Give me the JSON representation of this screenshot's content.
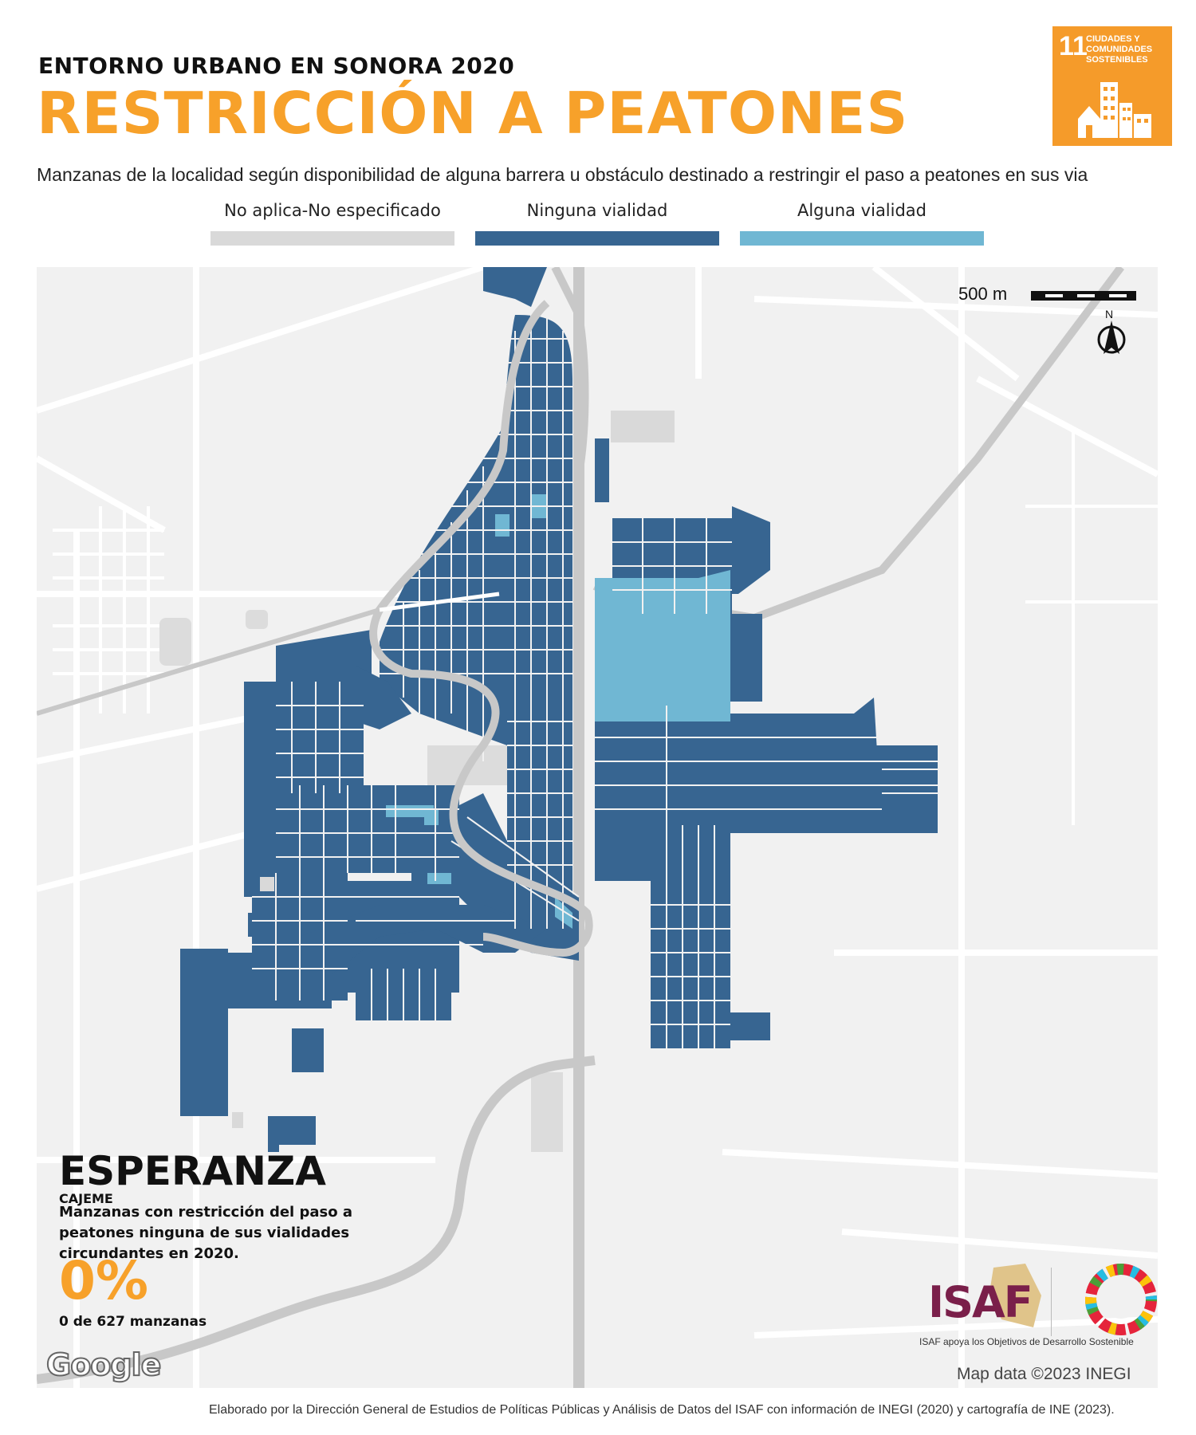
{
  "header": {
    "supertitle": "ENTORNO URBANO EN SONORA 2020",
    "title": "RESTRICCIÓN A PEATONES",
    "subtitle": "Manzanas de la localidad según disponibilidad de alguna barrera u obstáculo destinado a restringir el paso a peatones en sus via"
  },
  "sdg_badge": {
    "number": "11",
    "text": "CIUDADES Y COMUNIDADES SOSTENIBLES",
    "color": "#f59b2a"
  },
  "legend": [
    {
      "label": "No aplica-No especificado",
      "color": "#d9d9d9"
    },
    {
      "label": "Ninguna vialidad",
      "color": "#376591"
    },
    {
      "label": "Alguna vialidad",
      "color": "#70b7d3"
    }
  ],
  "map": {
    "scale_label": "500 m",
    "north_label": "N",
    "base_color": "#f1f1f1",
    "road_color": "#ffffff",
    "highway_color": "#c8c8c8"
  },
  "locality": {
    "name": "ESPERANZA",
    "municipality": "CAJEME",
    "description": "Manzanas con restricción del paso a peatones ninguna de sus vialidades circundantes en 2020.",
    "percentage": "0%",
    "count_text": "0 de 627 manzanas"
  },
  "attribution": {
    "google": "Google",
    "map_data": "Map data ©2023 INEGI",
    "isaf": "ISAF",
    "isaf_tagline": "ISAF apoya los Objetivos de Desarrollo Sostenible",
    "credits": "Elaborado por la Dirección General de Estudios de Políticas Públicas y Análisis de Datos del ISAF con información de INEGI (2020) y cartografía de INE (2023)."
  }
}
